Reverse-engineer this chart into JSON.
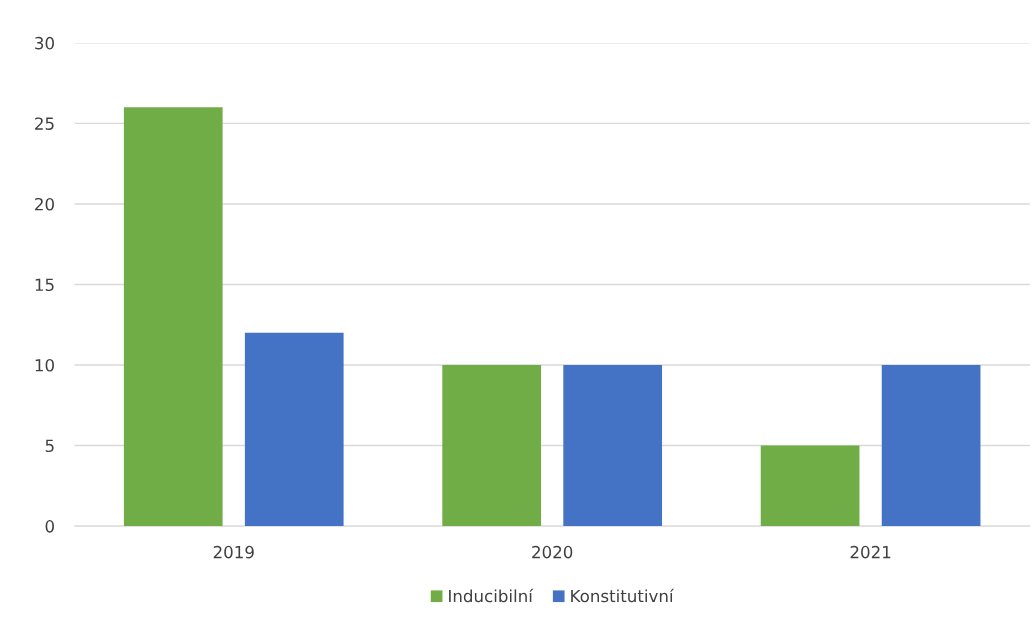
{
  "chart_data": {
    "type": "bar",
    "categories": [
      "2019",
      "2020",
      "2021"
    ],
    "series": [
      {
        "name": "Inducibilní",
        "color": "#70ad47",
        "values": [
          26,
          10,
          5
        ]
      },
      {
        "name": "Konstitutivní",
        "color": "#4472c4",
        "values": [
          12,
          10,
          10
        ]
      }
    ],
    "ylim": [
      0,
      30
    ],
    "yticks": [
      0,
      5,
      10,
      15,
      20,
      25,
      30
    ],
    "grid": "y",
    "legend": "bottom"
  }
}
